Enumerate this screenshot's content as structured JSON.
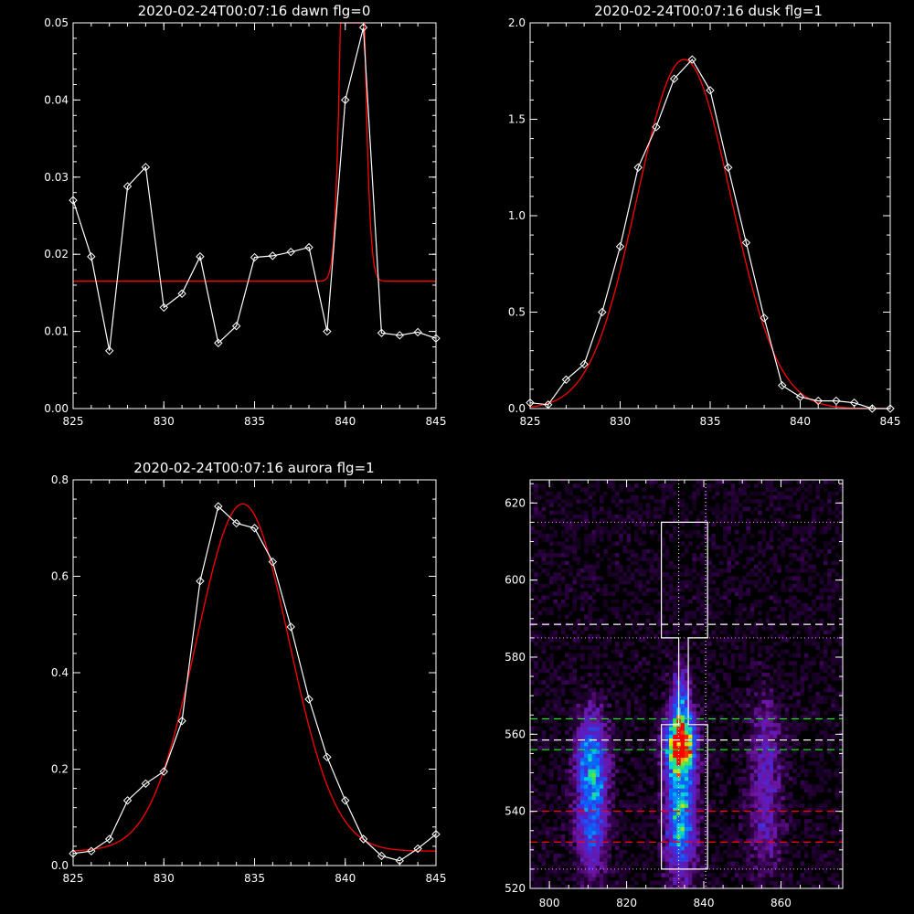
{
  "chart_data": [
    {
      "type": "line",
      "title": "2020-02-24T00:07:16 dawn flg=0",
      "xlim": [
        825,
        845
      ],
      "ylim": [
        0,
        0.05
      ],
      "xticks": [
        "825",
        "830",
        "835",
        "840",
        "845"
      ],
      "yticks": [
        "0.00",
        "0.01",
        "0.02",
        "0.03",
        "0.04",
        "0.05"
      ],
      "series": [
        {
          "x": [
            825,
            826,
            827,
            828,
            829,
            830,
            831,
            832,
            833,
            834,
            835,
            836,
            837,
            838,
            839,
            840,
            841,
            842,
            843,
            844,
            845
          ],
          "values": [
            0.027,
            0.0197,
            0.0075,
            0.0288,
            0.0313,
            0.0131,
            0.0149,
            0.0197,
            0.0085,
            0.0107,
            0.0196,
            0.0198,
            0.0203,
            0.0209,
            0.01,
            0.04,
            0.0494,
            0.0098,
            0.0095,
            0.0099,
            0.0091
          ],
          "color": "#ffffff",
          "markers": "diamond"
        }
      ],
      "fit": {
        "color": "#ff0000",
        "baseline": 0.0165,
        "amplitude": 0.12,
        "center": 840.4,
        "sigma": 0.42
      }
    },
    {
      "type": "line",
      "title": "2020-02-24T00:07:16 dusk flg=1",
      "xlim": [
        825,
        845
      ],
      "ylim": [
        0,
        2.0
      ],
      "xticks": [
        "825",
        "830",
        "835",
        "840",
        "845"
      ],
      "yticks": [
        "0.0",
        "0.5",
        "1.0",
        "1.5",
        "2.0"
      ],
      "series": [
        {
          "x": [
            825,
            826,
            827,
            828,
            829,
            830,
            831,
            832,
            833,
            834,
            835,
            836,
            837,
            838,
            839,
            840,
            841,
            842,
            843,
            844,
            845
          ],
          "values": [
            0.03,
            0.02,
            0.15,
            0.23,
            0.5,
            0.84,
            1.25,
            1.46,
            1.71,
            1.81,
            1.65,
            1.25,
            0.86,
            0.47,
            0.12,
            0.06,
            0.04,
            0.04,
            0.03,
            -0.02,
            -0.03
          ],
          "color": "#ffffff",
          "markers": "diamond"
        }
      ],
      "fit": {
        "color": "#ff0000",
        "baseline": 0.0,
        "amplitude": 1.81,
        "center": 833.55,
        "sigma": 2.6
      }
    },
    {
      "type": "line",
      "title": "2020-02-24T00:07:16 aurora flg=1",
      "xlim": [
        825,
        845
      ],
      "ylim": [
        0,
        0.8
      ],
      "xticks": [
        "825",
        "830",
        "835",
        "840",
        "845"
      ],
      "yticks": [
        "0.0",
        "0.2",
        "0.4",
        "0.6",
        "0.8"
      ],
      "series": [
        {
          "x": [
            825,
            826,
            827,
            828,
            829,
            830,
            831,
            832,
            833,
            834,
            835,
            836,
            837,
            838,
            839,
            840,
            841,
            842,
            843,
            844,
            845
          ],
          "values": [
            0.025,
            0.03,
            0.055,
            0.135,
            0.17,
            0.195,
            0.3,
            0.59,
            0.745,
            0.71,
            0.7,
            0.63,
            0.495,
            0.345,
            0.225,
            0.135,
            0.055,
            0.02,
            0.01,
            0.035,
            0.065
          ],
          "color": "#ffffff",
          "markers": "diamond"
        }
      ],
      "fit": {
        "color": "#ff0000",
        "baseline": 0.03,
        "amplitude": 0.72,
        "center": 834.35,
        "sigma": 2.55
      }
    },
    {
      "type": "heatmap",
      "xlim": [
        795,
        876
      ],
      "ylim": [
        520,
        626
      ],
      "xticks": [
        "800",
        "820",
        "840",
        "860"
      ],
      "yticks": [
        "520",
        "540",
        "560",
        "580",
        "600",
        "620"
      ],
      "blobs": [
        {
          "x": 811,
          "y": 553,
          "sx": 2.8,
          "sy": 9,
          "amp": 0.55
        },
        {
          "x": 811,
          "y": 535,
          "sx": 2.8,
          "sy": 9,
          "amp": 0.35
        },
        {
          "x": 834,
          "y": 558,
          "sx": 2.6,
          "sy": 5,
          "amp": 0.95
        },
        {
          "x": 834,
          "y": 540,
          "sx": 2.6,
          "sy": 12,
          "amp": 0.65
        },
        {
          "x": 834,
          "y": 570,
          "sx": 1.8,
          "sy": 6,
          "amp": 0.35
        },
        {
          "x": 856,
          "y": 555,
          "sx": 3.0,
          "sy": 10,
          "amp": 0.25
        },
        {
          "x": 856,
          "y": 535,
          "sx": 3.0,
          "sy": 8,
          "amp": 0.2
        }
      ],
      "overlays": {
        "white_box_outline": {
          "color": "#ffffff",
          "x_outer": [
            829,
            841
          ],
          "x_inner": [
            833.5,
            836
          ],
          "y_bottom": 525,
          "y_mid_low": 562.5,
          "y_mid_high": 585,
          "y_top": 615
        },
        "dotted_h": {
          "color": "#ff8cff",
          "y": [
            615,
            585,
            525
          ]
        },
        "dotted_v": {
          "color": "#ffffff",
          "x": [
            833.5,
            840.5
          ]
        },
        "dashed_white": {
          "color": "#ffffff",
          "y": [
            588.5,
            558.5
          ]
        },
        "dashed_green": {
          "color": "#00ff00",
          "y": [
            564,
            556
          ]
        },
        "dashed_red": {
          "color": "#ff0000",
          "y": [
            540,
            532
          ]
        }
      }
    }
  ]
}
